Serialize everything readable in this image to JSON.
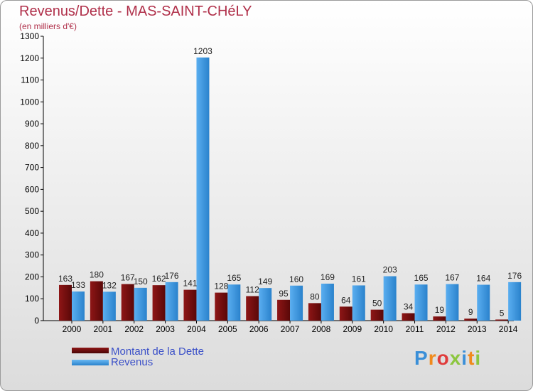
{
  "header": {
    "title": "Revenus/Dette - MAS-SAINT-CHéLY",
    "subtitle": "(en milliers d'€)"
  },
  "chart_data": {
    "type": "bar",
    "title": "Revenus/Dette - MAS-SAINT-CHéLY",
    "subtitle": "(en milliers d'€)",
    "xlabel": "",
    "ylabel": "",
    "ylim": [
      0,
      1300
    ],
    "yticks": [
      0,
      100,
      200,
      300,
      400,
      500,
      600,
      700,
      800,
      900,
      1000,
      1100,
      1200,
      1300
    ],
    "categories": [
      "2000",
      "2001",
      "2002",
      "2003",
      "2004",
      "2005",
      "2006",
      "2007",
      "2008",
      "2009",
      "2010",
      "2011",
      "2012",
      "2013",
      "2014"
    ],
    "series": [
      {
        "name": "Montant de la Dette",
        "color": "#7a1010",
        "values": [
          163,
          180,
          167,
          162,
          141,
          128,
          112,
          95,
          80,
          64,
          50,
          34,
          19,
          9,
          5
        ]
      },
      {
        "name": "Revenus",
        "color": "#3f9be0",
        "values": [
          133,
          132,
          150,
          176,
          1203,
          165,
          149,
          160,
          169,
          161,
          203,
          165,
          167,
          164,
          176
        ]
      }
    ],
    "grid": false,
    "legend": "bottom-left"
  },
  "legend": {
    "items": [
      {
        "label": "Montant de la Dette",
        "color": "#7a1010"
      },
      {
        "label": "Revenus",
        "color": "#3f9be0"
      }
    ]
  },
  "logo": {
    "letters": [
      "P",
      "r",
      "o",
      "x",
      "i",
      "t",
      "i"
    ],
    "colors": [
      "#3a8fd8",
      "#f08a1c",
      "#e03c3c",
      "#8cc63f",
      "#3a8fd8",
      "#f08a1c",
      "#8cc63f"
    ]
  }
}
